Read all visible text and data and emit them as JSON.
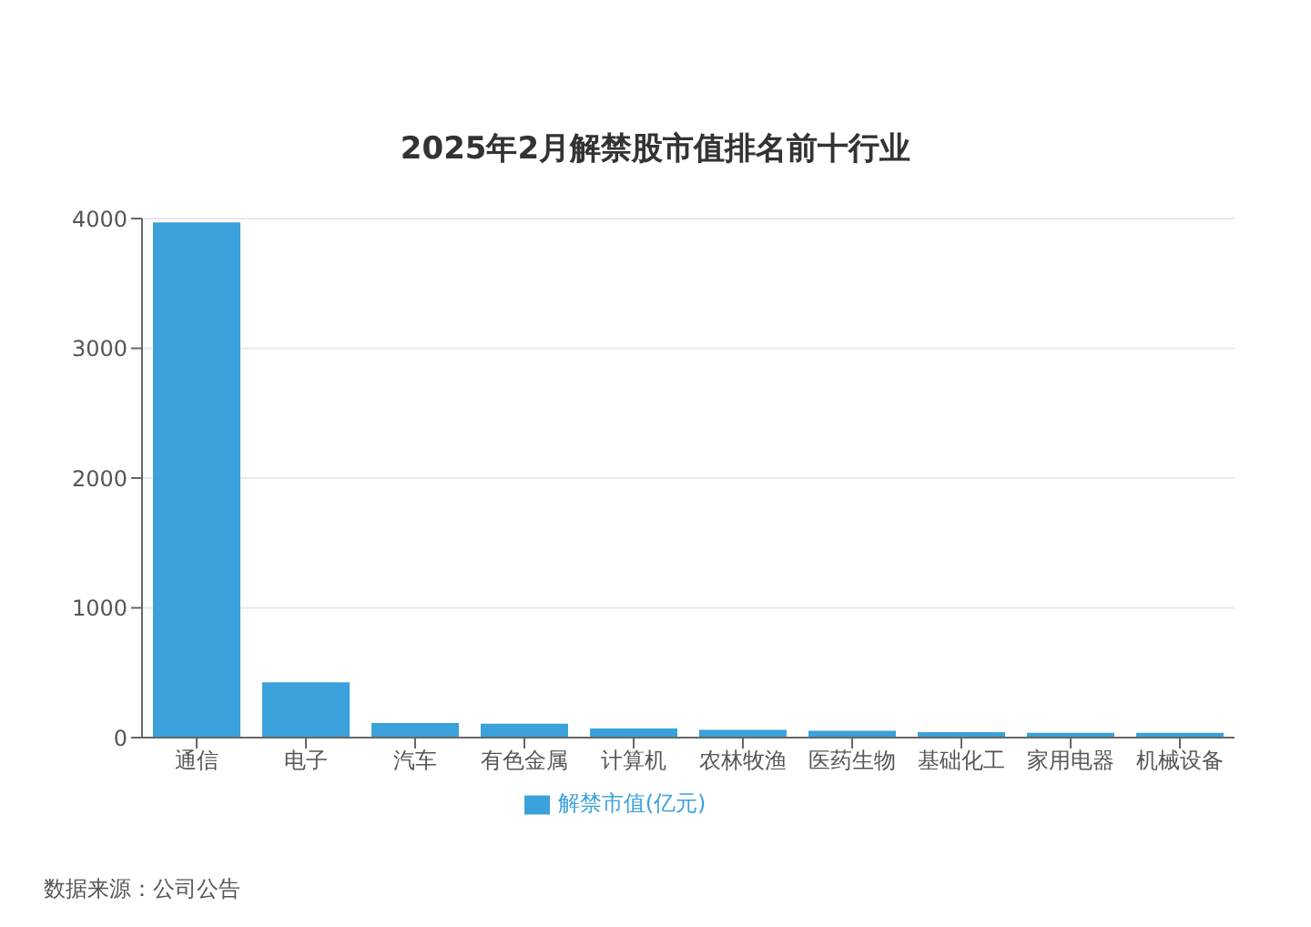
{
  "chart_data": {
    "type": "bar",
    "title": "2025年2月解禁股市值排名前十行业",
    "categories": [
      "通信",
      "电子",
      "汽车",
      "有色金属",
      "计算机",
      "农林牧渔",
      "医药生物",
      "基础化工",
      "家用电器",
      "机械设备"
    ],
    "series": [
      {
        "name": "解禁市值(亿元)",
        "color": "#3ba1db",
        "values": [
          3970,
          427,
          113,
          107,
          71,
          59,
          53,
          42,
          36,
          36
        ]
      }
    ],
    "ylim": [
      0,
      4000
    ],
    "yticks": [
      0,
      1000,
      2000,
      3000,
      4000
    ],
    "grid": "y",
    "legend": "bottom",
    "annotations": [
      "数据来源：公司公告"
    ]
  }
}
